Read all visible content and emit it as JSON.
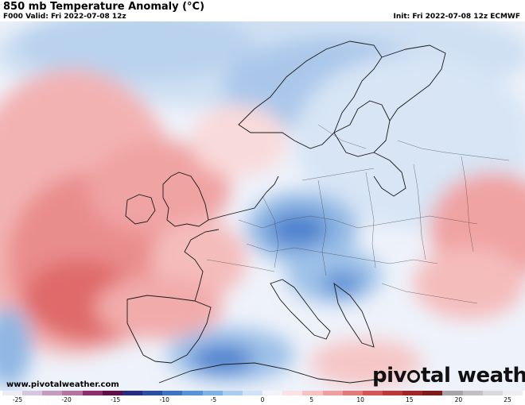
{
  "header": {
    "title": "850 mb Temperature Anomaly (°C)",
    "valid": "F000 Valid: Fri 2022-07-08 12z",
    "init": "Init: Fri 2022-07-08 12z ECMWF"
  },
  "watermark": {
    "url": "www.pivotalweather.com",
    "brand_left": "piv",
    "brand_right": "tal weather"
  },
  "legend": {
    "labels": [
      "-25",
      "-20",
      "-15",
      "-10",
      "-5",
      "0",
      "5",
      "10",
      "15",
      "20",
      "25"
    ],
    "colors": [
      "#ececf6",
      "#d7c6df",
      "#c59bbf",
      "#b5739f",
      "#8c2e6e",
      "#5e0f4a",
      "#262c7e",
      "#2a4ea2",
      "#3d73c2",
      "#5a92d6",
      "#7fb1e4",
      "#a8cdef",
      "#cfe2f6",
      "#f2f4fb",
      "#fbe3e3",
      "#f6c2c2",
      "#eda0a0",
      "#e27a7a",
      "#d25656",
      "#bd3838",
      "#a02626",
      "#7d1b1b",
      "#a8a4a8",
      "#c3bfc3",
      "#dcd9dc",
      "#efedef"
    ]
  },
  "colors": {
    "warm_strong": "#df6b6b",
    "warm_mid": "#f0a3a3",
    "warm_light": "#f9d3d3",
    "neutral": "#f4f4f8",
    "cool_light": "#cfe0f3",
    "cool_mid": "#8fb7e3",
    "cool_strong": "#4f82cf",
    "cool_deep": "#2f62b8",
    "border": "#1a1a1a"
  }
}
